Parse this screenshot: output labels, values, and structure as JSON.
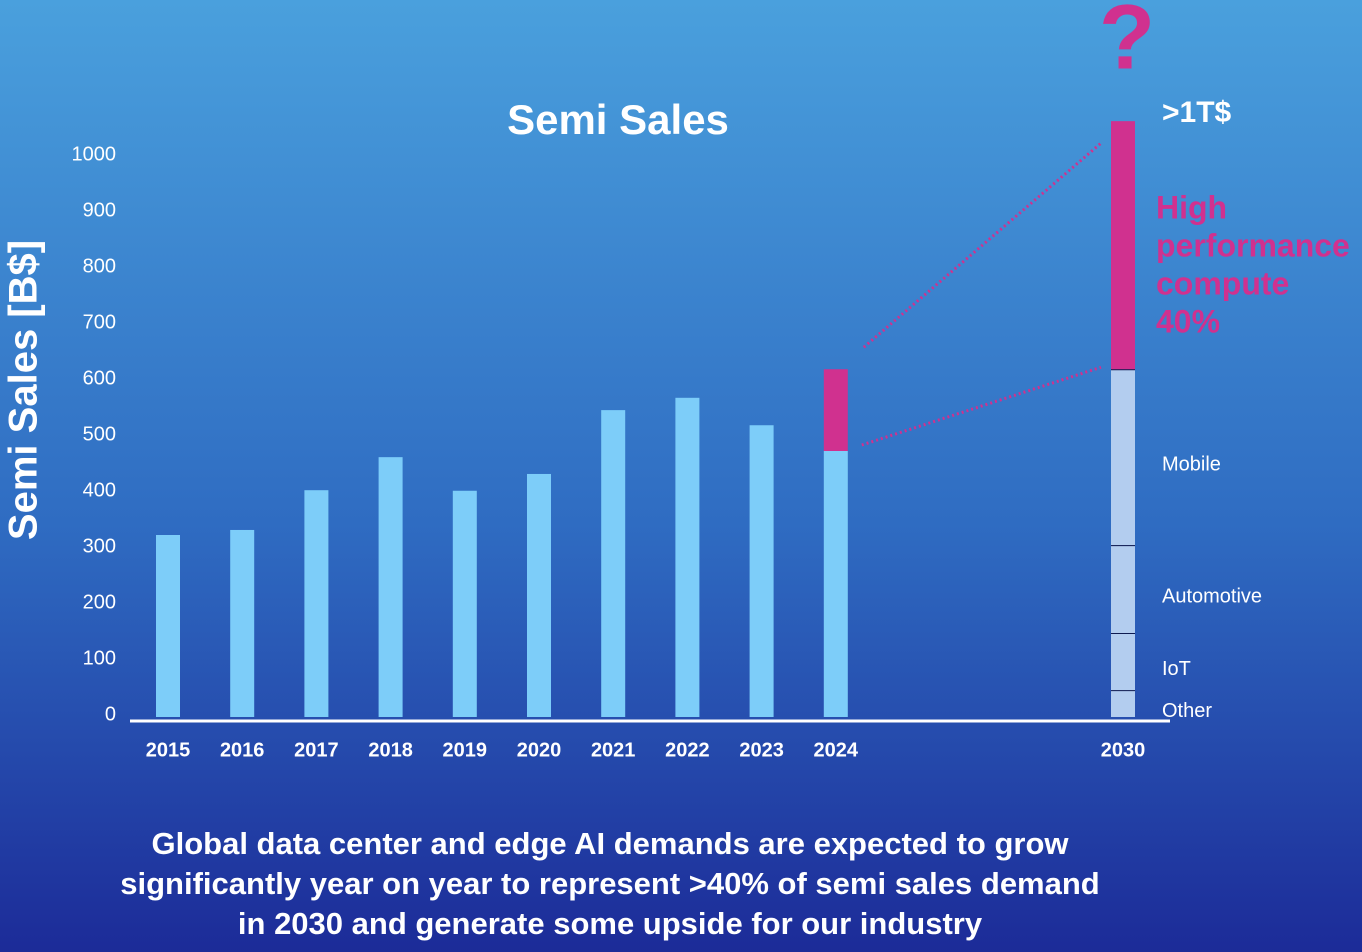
{
  "chart_data": {
    "type": "bar",
    "title": "Semi Sales",
    "y_label": "Semi Sales [B$]",
    "categories": [
      "2015",
      "2016",
      "2017",
      "2018",
      "2019",
      "2020",
      "2021",
      "2022",
      "2023",
      "2024",
      "2030"
    ],
    "values": [
      325,
      334,
      405,
      464,
      404,
      434,
      548,
      570,
      521,
      475,
      null
    ],
    "color": "#7dcdf9",
    "highlight": {
      "values": [
        null,
        null,
        null,
        null,
        null,
        null,
        null,
        null,
        null,
        146,
        443
      ],
      "color": "#d0318f"
    },
    "segments_2030": [
      {
        "name": "Other",
        "value": 48
      },
      {
        "name": "IoT",
        "value": 102
      },
      {
        "name": "Automotive",
        "value": 157
      },
      {
        "name": "Mobile",
        "value": 314
      }
    ],
    "segment_color": "#b3cdef",
    "ylim": [
      0,
      1000
    ],
    "yticks": [
      0,
      100,
      200,
      300,
      400,
      500,
      600,
      700,
      800,
      900,
      1000
    ],
    "annotations": {
      "question": "?",
      "total": ">1T$",
      "hpc": [
        "High",
        "performance",
        "compute",
        "40%"
      ]
    },
    "caption": [
      "Global data center and edge AI demands are expected to grow",
      "significantly year on year to represent >40% of semi sales demand",
      "in 2030 and generate some upside for our industry"
    ]
  }
}
